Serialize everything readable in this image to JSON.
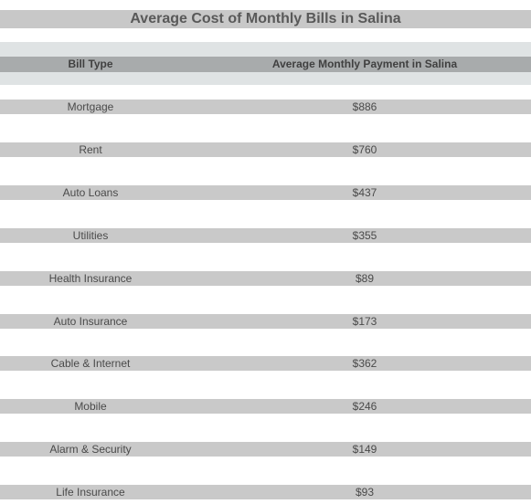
{
  "chart_data": {
    "type": "table",
    "title": "Average Cost of Monthly Bills in Salina",
    "columns": [
      "Bill Type",
      "Average Monthly Payment in Salina"
    ],
    "rows": [
      {
        "bill_type": "Mortgage",
        "payment": "$886"
      },
      {
        "bill_type": "Rent",
        "payment": "$760"
      },
      {
        "bill_type": "Auto Loans",
        "payment": "$437"
      },
      {
        "bill_type": "Utilities",
        "payment": "$355"
      },
      {
        "bill_type": "Health Insurance",
        "payment": "$89"
      },
      {
        "bill_type": "Auto Insurance",
        "payment": "$173"
      },
      {
        "bill_type": "Cable & Internet",
        "payment": "$362"
      },
      {
        "bill_type": "Mobile",
        "payment": "$246"
      },
      {
        "bill_type": "Alarm & Security",
        "payment": "$149"
      },
      {
        "bill_type": "Life Insurance",
        "payment": "$93"
      }
    ],
    "colors": {
      "title_band": "#c8c8c8",
      "header_outer": "#dfe3e4",
      "header_inner": "#a8abac",
      "row_band": "#c9c9c9",
      "text": "#4a4a4a"
    }
  }
}
